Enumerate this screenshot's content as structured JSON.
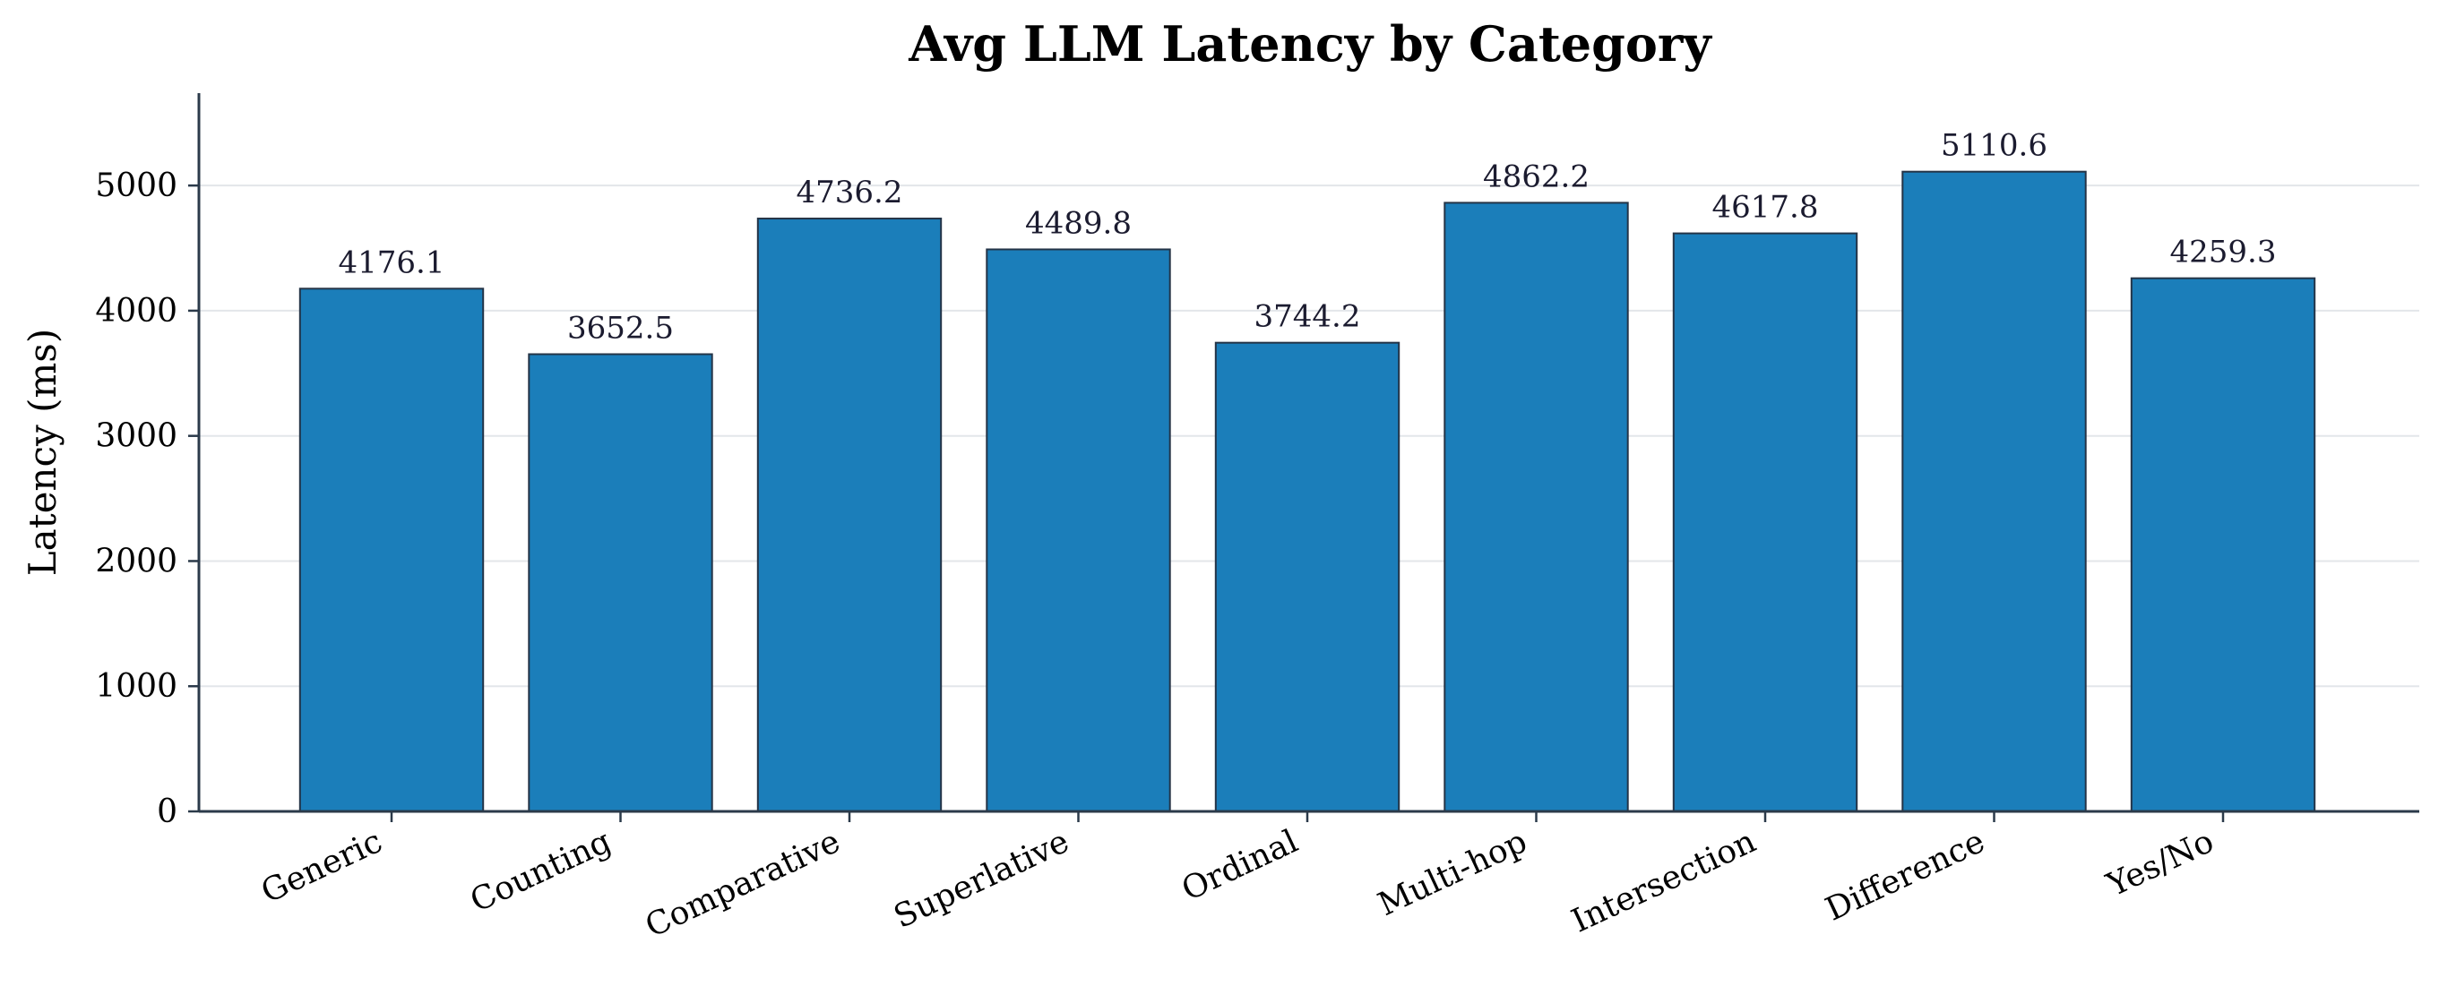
{
  "chart_data": {
    "type": "bar",
    "title": "Avg LLM Latency by Category",
    "xlabel": "",
    "ylabel": "Latency (ms)",
    "categories": [
      "Generic",
      "Counting",
      "Comparative",
      "Superlative",
      "Ordinal",
      "Multi-hop",
      "Intersection",
      "Difference",
      "Yes/No"
    ],
    "values": [
      4176.1,
      3652.5,
      4736.2,
      4489.8,
      3744.2,
      4862.2,
      4617.8,
      5110.6,
      4259.3
    ],
    "value_labels": [
      "4176.1",
      "3652.5",
      "4736.2",
      "4489.8",
      "3744.2",
      "4862.2",
      "4617.8",
      "5110.6",
      "4259.3"
    ],
    "ylim": [
      0,
      5738
    ],
    "yticks": [
      0,
      1000,
      2000,
      3000,
      4000,
      5000
    ],
    "ytick_labels": [
      "0",
      "1000",
      "2000",
      "3000",
      "4000",
      "5000"
    ],
    "grid": "y",
    "colors": {
      "bar": "#1b7eba",
      "bar_edge": "#243447",
      "axis": "#2b3a4a",
      "grid": "#e3e6ea"
    }
  }
}
